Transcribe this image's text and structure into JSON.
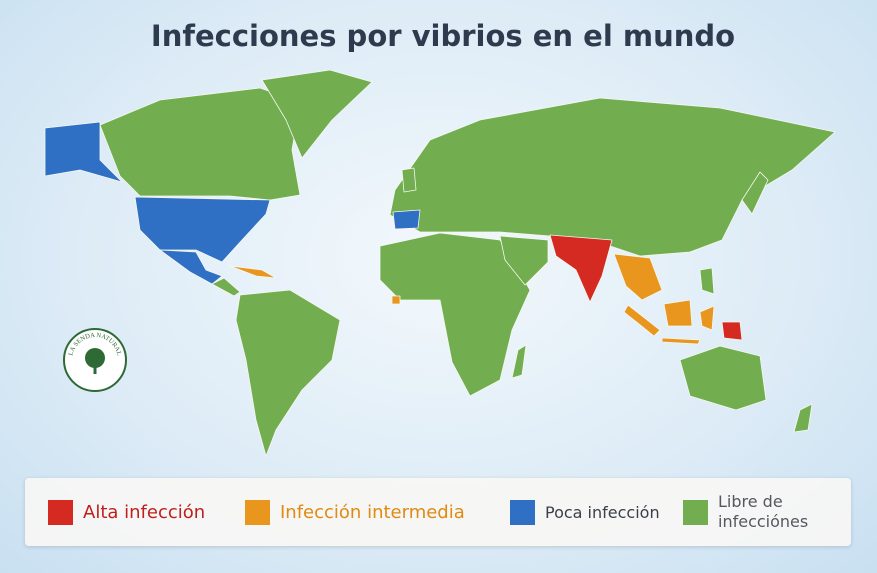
{
  "title": "Infecciones por vibrios en el mundo",
  "legend": [
    {
      "label": "Alta infección",
      "color": "#d42a22",
      "label_color": "#c0201c"
    },
    {
      "label": "Infección intermedia",
      "color": "#e8961e",
      "label_color": "#e08a12"
    },
    {
      "label": "Poca infección",
      "color": "#2f6fc4",
      "label_color": "#3a3f4a"
    },
    {
      "label": "Libre de infecciónes",
      "color": "#72ad4f",
      "label_color": "#55595f"
    }
  ],
  "logo": {
    "text": "LA SENDA NATURAL"
  }
}
